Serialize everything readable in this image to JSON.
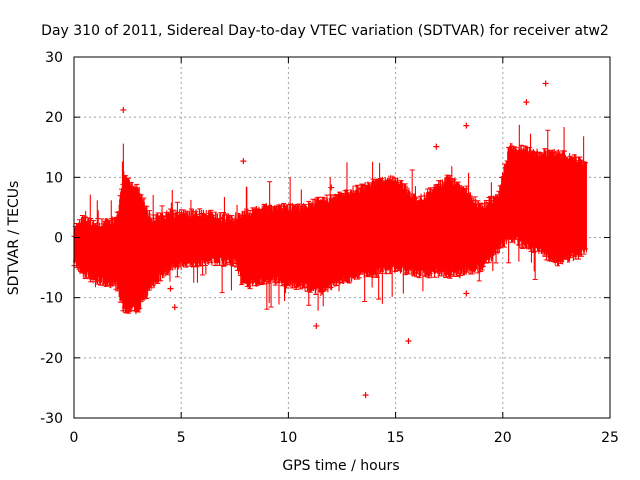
{
  "chart_data": {
    "type": "scatter",
    "title": "Day 310 of 2011, Sidereal Day-to-day VTEC variation (SDTVAR) for receiver atw2",
    "xlabel": "GPS time / hours",
    "ylabel": "SDTVAR / TECUs",
    "xlim": [
      0,
      25
    ],
    "ylim": [
      -30,
      30
    ],
    "xticks": [
      "0",
      "5",
      "10",
      "15",
      "20",
      "25"
    ],
    "yticks": [
      "-30",
      "-20",
      "-10",
      "0",
      "10",
      "20",
      "30"
    ],
    "grid": true,
    "marker": "+",
    "series_color": "#ff0000",
    "envelope": {
      "description_hours": [
        0,
        0.4,
        1.0,
        2.0,
        2.3,
        3.0,
        3.6,
        4.5,
        6.0,
        7.5,
        7.9,
        9.0,
        10.5,
        11.5,
        12.5,
        14.0,
        15.0,
        16.0,
        17.5,
        19.0,
        19.8,
        20.3,
        21.5,
        22.5,
        23.5,
        23.9
      ],
      "upper": [
        1,
        3,
        2,
        3,
        10,
        8,
        3,
        4,
        4,
        3,
        4,
        5,
        5,
        6,
        7,
        9,
        10,
        6,
        10,
        5,
        7,
        15,
        14,
        14,
        13,
        12
      ],
      "lower": [
        -4,
        -6,
        -7,
        -8,
        -12,
        -12,
        -8,
        -5,
        -4,
        -4,
        -8,
        -7,
        -8,
        -9,
        -7,
        -6,
        -5,
        -6,
        -6,
        -5,
        -2,
        0,
        -2,
        -4,
        -3,
        -2
      ]
    },
    "outliers": [
      {
        "x": 2.3,
        "y": 21.2
      },
      {
        "x": 7.9,
        "y": 12.7
      },
      {
        "x": 13.6,
        "y": -26.2
      },
      {
        "x": 15.6,
        "y": -17.2
      },
      {
        "x": 18.3,
        "y": 18.6
      },
      {
        "x": 18.3,
        "y": -9.3
      },
      {
        "x": 11.3,
        "y": -14.7
      },
      {
        "x": 4.7,
        "y": -11.6
      },
      {
        "x": 22.0,
        "y": 25.6
      },
      {
        "x": 21.1,
        "y": 22.5
      },
      {
        "x": 16.9,
        "y": 15.1
      },
      {
        "x": 12.0,
        "y": 8.3
      },
      {
        "x": 18.0,
        "y": -6.3
      },
      {
        "x": 4.5,
        "y": -8.5
      }
    ]
  }
}
